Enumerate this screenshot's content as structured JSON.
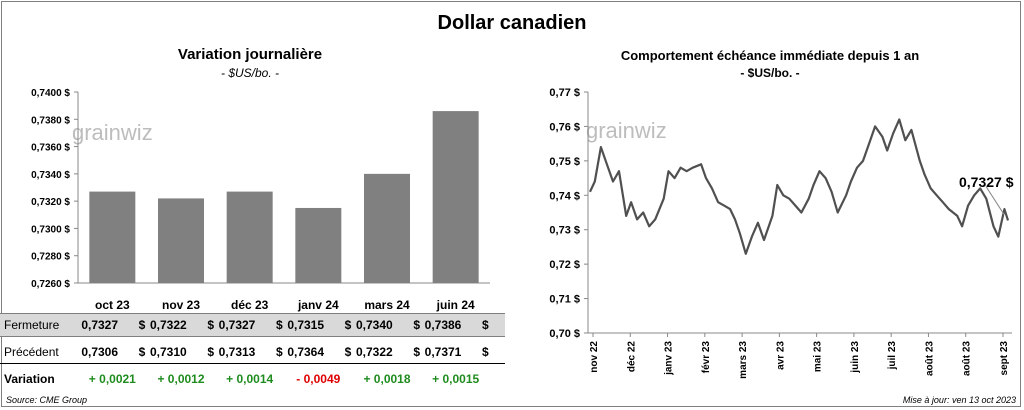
{
  "title": "Dollar canadien",
  "left": {
    "title": "Variation  journalière",
    "subtitle": "- $US/bo. -",
    "watermark": "grainwiz"
  },
  "right": {
    "title": "Comportement échéance immédiate depuis 1 an",
    "subtitle": "- $US/bo. -",
    "watermark": "grainwiz",
    "last_label": "0,7327 $"
  },
  "table": {
    "rows": [
      {
        "label": "Fermeture",
        "values": [
          "0,7327",
          "0,7322",
          "0,7327",
          "0,7315",
          "0,7340",
          "0,7386"
        ],
        "unit": "$"
      },
      {
        "label": "Précédent",
        "values": [
          "0,7306",
          "0,7310",
          "0,7313",
          "0,7364",
          "0,7322",
          "0,7371"
        ],
        "unit": "$"
      },
      {
        "label": "Variation",
        "values": [
          "+ 0,0021",
          "+ 0,0012",
          "+ 0,0014",
          "- 0,0049",
          "+ 0,0018",
          "+ 0,0015"
        ],
        "unit": ""
      }
    ],
    "colors": {
      "positive": "#1e8c1e",
      "negative": "#e00000"
    }
  },
  "footer": {
    "source": "Source: CME Group",
    "updated": "Mise à jour: ven 13 oct 2023"
  },
  "chart_data": [
    {
      "type": "bar",
      "title": "Variation  journalière",
      "subtitle": "- $US/bo. -",
      "categories": [
        "oct 23",
        "nov 23",
        "déc 23",
        "janv 24",
        "mars 24",
        "juin 24"
      ],
      "values": [
        0.7327,
        0.7322,
        0.7327,
        0.7315,
        0.734,
        0.7386
      ],
      "ylim": [
        0.726,
        0.74
      ],
      "yticks": [
        "0,7260 $",
        "0,7280 $",
        "0,7300 $",
        "0,7320 $",
        "0,7340 $",
        "0,7360 $",
        "0,7380 $",
        "0,7400 $"
      ],
      "bar_color": "#808080",
      "grid": false
    },
    {
      "type": "line",
      "title": "Comportement échéance immédiate depuis 1 an",
      "subtitle": "- $US/bo. -",
      "ylim": [
        0.7,
        0.77
      ],
      "yticks": [
        "0,70 $",
        "0,71 $",
        "0,72 $",
        "0,73 $",
        "0,74 $",
        "0,75 $",
        "0,76 $",
        "0,77 $"
      ],
      "xticks": [
        "nov 22",
        "déc 22",
        "janv 23",
        "févr 23",
        "mars 23",
        "avr 23",
        "mai 23",
        "juin 23",
        "juil 23",
        "août 23",
        "août 23",
        "sept 23"
      ],
      "line_color": "#505050",
      "grid": false,
      "x": [
        "2022-11-01",
        "2022-11-05",
        "2022-11-10",
        "2022-11-15",
        "2022-11-20",
        "2022-11-25",
        "2022-12-01",
        "2022-12-05",
        "2022-12-10",
        "2022-12-15",
        "2022-12-20",
        "2022-12-25",
        "2023-01-01",
        "2023-01-05",
        "2023-01-10",
        "2023-01-15",
        "2023-01-20",
        "2023-01-25",
        "2023-02-01",
        "2023-02-05",
        "2023-02-10",
        "2023-02-15",
        "2023-02-20",
        "2023-02-25",
        "2023-03-01",
        "2023-03-05",
        "2023-03-10",
        "2023-03-15",
        "2023-03-20",
        "2023-03-25",
        "2023-04-01",
        "2023-04-05",
        "2023-04-10",
        "2023-04-15",
        "2023-04-20",
        "2023-04-25",
        "2023-05-01",
        "2023-05-05",
        "2023-05-10",
        "2023-05-15",
        "2023-05-20",
        "2023-05-25",
        "2023-06-01",
        "2023-06-05",
        "2023-06-10",
        "2023-06-15",
        "2023-06-20",
        "2023-06-25",
        "2023-07-01",
        "2023-07-05",
        "2023-07-10",
        "2023-07-15",
        "2023-07-20",
        "2023-07-25",
        "2023-08-01",
        "2023-08-05",
        "2023-08-10",
        "2023-08-15",
        "2023-08-20",
        "2023-08-25",
        "2023-09-01",
        "2023-09-05",
        "2023-09-10",
        "2023-09-15",
        "2023-09-20",
        "2023-09-25",
        "2023-10-01",
        "2023-10-05",
        "2023-10-10",
        "2023-10-13"
      ],
      "y": [
        0.741,
        0.744,
        0.754,
        0.749,
        0.744,
        0.747,
        0.734,
        0.738,
        0.733,
        0.735,
        0.731,
        0.733,
        0.739,
        0.747,
        0.745,
        0.748,
        0.747,
        0.748,
        0.749,
        0.745,
        0.742,
        0.738,
        0.737,
        0.736,
        0.733,
        0.729,
        0.723,
        0.728,
        0.732,
        0.727,
        0.734,
        0.743,
        0.74,
        0.739,
        0.737,
        0.735,
        0.739,
        0.743,
        0.747,
        0.745,
        0.741,
        0.735,
        0.74,
        0.744,
        0.748,
        0.75,
        0.755,
        0.76,
        0.757,
        0.753,
        0.758,
        0.762,
        0.756,
        0.759,
        0.75,
        0.746,
        0.742,
        0.74,
        0.738,
        0.736,
        0.734,
        0.731,
        0.737,
        0.74,
        0.742,
        0.739,
        0.731,
        0.728,
        0.736,
        0.7327
      ]
    }
  ]
}
